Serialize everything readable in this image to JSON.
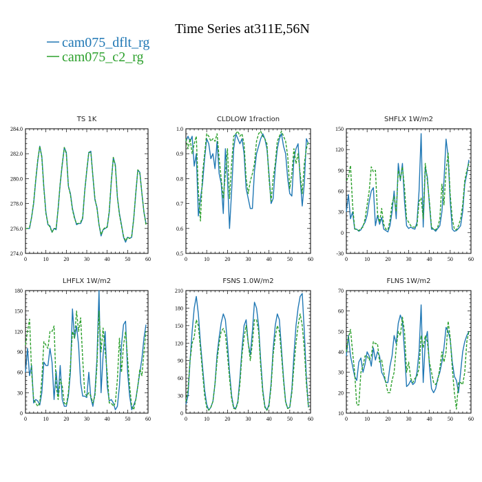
{
  "figure": {
    "title": "Time Series at311E,56N",
    "legend": [
      {
        "name": "cam075_dflt_rg",
        "color": "#1f77b4",
        "dash": "solid"
      },
      {
        "name": "cam075_c2_rg",
        "color": "#2ca02c",
        "dash": "dashed"
      }
    ]
  },
  "chart_data": [
    {
      "type": "line",
      "title": "TS  1K",
      "xlim": [
        0,
        60
      ],
      "ylim": [
        274,
        284
      ],
      "xticks": [
        0,
        10,
        20,
        30,
        40,
        50,
        60
      ],
      "yticks": [
        274,
        276,
        278,
        280,
        282,
        284
      ],
      "ytick_labels": [
        "274.0",
        "276.0",
        "278.0",
        "280.0",
        "282.0",
        "284.0"
      ],
      "series": [
        {
          "name": "cam075_dflt_rg",
          "color": "#1f77b4",
          "dash": "solid",
          "values": [
            276.0,
            276.0,
            276.0,
            276.9,
            278.0,
            279.8,
            281.4,
            282.6,
            281.8,
            279.3,
            277.3,
            276.3,
            276.2,
            275.7,
            276.0,
            275.9,
            277.6,
            279.6,
            281.1,
            282.5,
            282.1,
            279.4,
            278.8,
            277.6,
            276.9,
            276.3,
            276.4,
            276.4,
            276.8,
            279.0,
            280.6,
            282.1,
            282.2,
            280.2,
            278.3,
            277.7,
            276.3,
            275.4,
            275.9,
            276.0,
            276.1,
            277.3,
            279.7,
            281.7,
            281.1,
            278.5,
            277.2,
            276.3,
            275.3,
            274.9,
            275.3,
            275.2,
            275.3,
            276.8,
            278.8,
            280.7,
            280.5,
            278.8,
            277.3,
            276.4
          ]
        },
        {
          "name": "cam075_c2_rg",
          "color": "#2ca02c",
          "dash": "dashed",
          "values": [
            276.0,
            276.0,
            276.1,
            276.9,
            278.1,
            279.9,
            281.5,
            282.6,
            281.7,
            279.2,
            277.2,
            276.4,
            276.1,
            275.7,
            276.0,
            276.0,
            277.6,
            279.6,
            281.2,
            282.5,
            282.0,
            279.4,
            278.7,
            277.5,
            276.8,
            276.4,
            276.4,
            276.5,
            276.9,
            279.0,
            280.7,
            282.1,
            282.1,
            280.2,
            278.4,
            277.6,
            276.3,
            275.5,
            275.9,
            276.1,
            276.1,
            277.4,
            279.8,
            281.7,
            281.0,
            278.5,
            277.1,
            276.2,
            275.4,
            275.0,
            275.3,
            275.2,
            275.4,
            276.8,
            278.9,
            280.7,
            280.4,
            278.8,
            277.3,
            276.3
          ]
        }
      ]
    },
    {
      "type": "line",
      "title": "CLDLOW  1fraction",
      "xlim": [
        0,
        60
      ],
      "ylim": [
        0.5,
        1.0
      ],
      "xticks": [
        0,
        10,
        20,
        30,
        40,
        50,
        60
      ],
      "yticks": [
        0.5,
        0.6,
        0.7,
        0.8,
        0.9,
        1.0
      ],
      "ytick_labels": [
        "0.5",
        "0.6",
        "0.7",
        "0.8",
        "0.9",
        "1.0"
      ],
      "series": [
        {
          "name": "cam075_dflt_rg",
          "color": "#1f77b4",
          "dash": "solid",
          "values": [
            0.95,
            0.97,
            0.95,
            0.97,
            0.85,
            0.9,
            0.65,
            0.72,
            0.78,
            0.88,
            0.96,
            0.94,
            0.88,
            0.9,
            0.84,
            0.95,
            0.82,
            0.78,
            0.66,
            0.92,
            0.8,
            0.6,
            0.75,
            0.92,
            0.98,
            0.96,
            0.94,
            0.96,
            0.9,
            0.76,
            0.72,
            0.68,
            0.68,
            0.83,
            0.9,
            0.93,
            0.96,
            0.98,
            0.96,
            0.92,
            0.82,
            0.7,
            0.72,
            0.84,
            0.92,
            0.96,
            0.98,
            0.93,
            0.9,
            0.8,
            0.74,
            0.73,
            0.88,
            0.92,
            0.94,
            0.8,
            0.69,
            0.78,
            0.96,
            0.94
          ]
        },
        {
          "name": "cam075_c2_rg",
          "color": "#2ca02c",
          "dash": "dashed",
          "values": [
            0.96,
            0.92,
            0.96,
            0.9,
            0.94,
            0.97,
            0.75,
            0.63,
            0.82,
            0.9,
            0.98,
            0.97,
            0.95,
            0.96,
            0.95,
            0.98,
            0.88,
            0.8,
            0.72,
            0.82,
            0.92,
            0.72,
            0.86,
            0.97,
            0.98,
            0.99,
            0.97,
            0.98,
            0.94,
            0.8,
            0.74,
            0.79,
            0.82,
            0.86,
            0.95,
            0.98,
            0.99,
            0.97,
            0.96,
            0.94,
            0.8,
            0.71,
            0.8,
            0.86,
            0.95,
            0.97,
            0.99,
            0.97,
            0.95,
            0.89,
            0.76,
            0.82,
            0.92,
            0.86,
            0.9,
            0.82,
            0.74,
            0.86,
            0.92,
            0.95
          ]
        }
      ]
    },
    {
      "type": "line",
      "title": "SHFLX  1W/m2",
      "xlim": [
        0,
        60
      ],
      "ylim": [
        -30,
        150
      ],
      "xticks": [
        0,
        10,
        20,
        30,
        40,
        50,
        60
      ],
      "yticks": [
        -30,
        0,
        30,
        60,
        90,
        120,
        150
      ],
      "ytick_labels": [
        "-30",
        "0",
        "30",
        "60",
        "90",
        "120",
        "150"
      ],
      "series": [
        {
          "name": "cam075_dflt_rg",
          "color": "#1f77b4",
          "dash": "solid",
          "values": [
            30,
            55,
            20,
            30,
            5,
            5,
            2,
            4,
            10,
            15,
            25,
            45,
            60,
            65,
            10,
            25,
            12,
            22,
            5,
            3,
            1,
            10,
            30,
            60,
            20,
            100,
            75,
            100,
            45,
            10,
            6,
            8,
            6,
            5,
            15,
            60,
            143,
            8,
            95,
            80,
            40,
            5,
            5,
            2,
            6,
            10,
            30,
            75,
            135,
            110,
            45,
            5,
            2,
            3,
            6,
            10,
            30,
            70,
            85,
            105
          ]
        },
        {
          "name": "cam075_c2_rg",
          "color": "#2ca02c",
          "dash": "dashed",
          "values": [
            75,
            80,
            97,
            40,
            6,
            4,
            3,
            6,
            8,
            20,
            40,
            60,
            95,
            88,
            90,
            28,
            15,
            35,
            12,
            5,
            4,
            18,
            42,
            52,
            30,
            90,
            78,
            95,
            65,
            20,
            15,
            10,
            8,
            8,
            10,
            45,
            50,
            20,
            100,
            75,
            45,
            8,
            5,
            4,
            8,
            20,
            70,
            40,
            90,
            115,
            55,
            20,
            5,
            4,
            10,
            20,
            40,
            75,
            90,
            100
          ]
        }
      ]
    },
    {
      "type": "line",
      "title": "LHFLX  1W/m2",
      "xlim": [
        0,
        60
      ],
      "ylim": [
        0,
        180
      ],
      "xticks": [
        0,
        10,
        20,
        30,
        40,
        50,
        60
      ],
      "yticks": [
        0,
        30,
        60,
        90,
        120,
        150,
        180
      ],
      "ytick_labels": [
        "0",
        "30",
        "60",
        "90",
        "120",
        "150",
        "180"
      ],
      "series": [
        {
          "name": "cam075_dflt_rg",
          "color": "#1f77b4",
          "dash": "solid",
          "values": [
            60,
            95,
            55,
            70,
            15,
            20,
            18,
            12,
            30,
            75,
            70,
            70,
            95,
            75,
            20,
            62,
            25,
            70,
            20,
            10,
            10,
            25,
            60,
            153,
            110,
            128,
            100,
            45,
            25,
            25,
            23,
            60,
            22,
            10,
            30,
            80,
            180,
            30,
            85,
            120,
            40,
            18,
            20,
            15,
            5,
            10,
            40,
            100,
            130,
            135,
            60,
            25,
            5,
            12,
            20,
            40,
            60,
            80,
            110,
            130
          ]
        },
        {
          "name": "cam075_c2_rg",
          "color": "#2ca02c",
          "dash": "dashed",
          "values": [
            100,
            120,
            138,
            60,
            20,
            15,
            10,
            15,
            50,
            105,
            100,
            95,
            120,
            120,
            128,
            40,
            20,
            50,
            40,
            15,
            12,
            30,
            70,
            120,
            110,
            150,
            120,
            140,
            80,
            30,
            25,
            30,
            25,
            15,
            25,
            70,
            150,
            90,
            125,
            90,
            60,
            15,
            15,
            10,
            15,
            50,
            110,
            60,
            100,
            120,
            80,
            40,
            10,
            5,
            20,
            40,
            65,
            55,
            90,
            120
          ]
        }
      ]
    },
    {
      "type": "line",
      "title": "FSNS  1.0W/m2",
      "xlim": [
        0,
        60
      ],
      "ylim": [
        0,
        210
      ],
      "xticks": [
        0,
        10,
        20,
        30,
        40,
        50,
        60
      ],
      "yticks": [
        0,
        30,
        60,
        90,
        120,
        150,
        180,
        210
      ],
      "ytick_labels": [
        "0",
        "30",
        "60",
        "90",
        "120",
        "150",
        "180",
        "210"
      ],
      "series": [
        {
          "name": "cam075_dflt_rg",
          "color": "#1f77b4",
          "dash": "solid",
          "values": [
            15,
            30,
            90,
            140,
            180,
            200,
            170,
            120,
            80,
            40,
            15,
            5,
            10,
            20,
            50,
            100,
            130,
            155,
            170,
            160,
            120,
            70,
            30,
            10,
            8,
            20,
            60,
            110,
            150,
            160,
            120,
            100,
            140,
            190,
            180,
            150,
            90,
            40,
            12,
            5,
            15,
            50,
            110,
            150,
            170,
            160,
            110,
            60,
            20,
            8,
            10,
            40,
            100,
            150,
            180,
            200,
            205,
            140,
            60,
            10
          ]
        },
        {
          "name": "cam075_c2_rg",
          "color": "#2ca02c",
          "dash": "dashed",
          "values": [
            20,
            40,
            90,
            120,
            130,
            160,
            150,
            110,
            70,
            30,
            10,
            5,
            10,
            20,
            50,
            90,
            120,
            140,
            145,
            135,
            100,
            60,
            25,
            8,
            7,
            18,
            50,
            100,
            130,
            150,
            120,
            90,
            120,
            160,
            160,
            140,
            80,
            35,
            10,
            5,
            12,
            45,
            100,
            130,
            150,
            140,
            100,
            55,
            18,
            8,
            10,
            35,
            80,
            120,
            150,
            170,
            150,
            110,
            50,
            10
          ]
        }
      ]
    },
    {
      "type": "line",
      "title": "FLNS  1W/m2",
      "xlim": [
        0,
        60
      ],
      "ylim": [
        10,
        70
      ],
      "xticks": [
        0,
        10,
        20,
        30,
        40,
        50,
        60
      ],
      "yticks": [
        10,
        20,
        30,
        40,
        50,
        60,
        70
      ],
      "ytick_labels": [
        "10",
        "20",
        "30",
        "40",
        "50",
        "60",
        "70"
      ],
      "series": [
        {
          "name": "cam075_dflt_rg",
          "color": "#1f77b4",
          "dash": "solid",
          "values": [
            38,
            48,
            38,
            33,
            28,
            26,
            35,
            37,
            30,
            34,
            40,
            38,
            33,
            42,
            36,
            40,
            38,
            30,
            28,
            25,
            25,
            33,
            38,
            48,
            44,
            54,
            58,
            55,
            40,
            23,
            24,
            26,
            24,
            25,
            30,
            40,
            63,
            25,
            45,
            50,
            33,
            22,
            20,
            22,
            27,
            30,
            35,
            42,
            52,
            50,
            46,
            35,
            28,
            26,
            20,
            30,
            40,
            45,
            48,
            50
          ]
        },
        {
          "name": "cam075_c2_rg",
          "color": "#2ca02c",
          "dash": "dashed",
          "values": [
            40,
            47,
            51,
            40,
            30,
            14,
            14,
            30,
            33,
            38,
            38,
            36,
            38,
            45,
            44,
            44,
            35,
            36,
            30,
            25,
            20,
            20,
            26,
            30,
            42,
            50,
            48,
            57,
            50,
            30,
            35,
            27,
            25,
            27,
            28,
            32,
            48,
            42,
            48,
            45,
            35,
            30,
            25,
            24,
            26,
            32,
            40,
            35,
            40,
            55,
            47,
            32,
            20,
            12,
            25,
            25,
            24,
            30,
            45,
            50
          ]
        }
      ]
    }
  ]
}
